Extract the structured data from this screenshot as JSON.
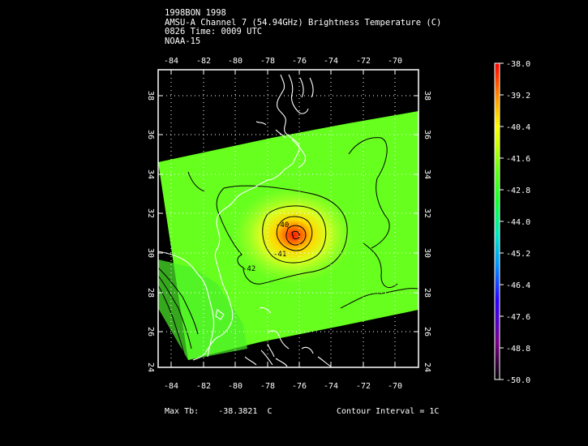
{
  "header": {
    "line1": "1998BON 1998",
    "line2": "AMSU-A Channel 7 (54.94GHz) Brightness Temperature (C)",
    "line3": "0826 Time: 0009 UTC",
    "line4": "NOAA-15"
  },
  "map": {
    "lon_ticks": [
      "-84",
      "-82",
      "-80",
      "-78",
      "-76",
      "-74",
      "-72",
      "-70"
    ],
    "lat_ticks": [
      "24",
      "26",
      "28",
      "30",
      "32",
      "34",
      "36",
      "38"
    ],
    "lon_range": [
      -85.3,
      -69.3
    ],
    "lat_range": [
      23.3,
      39.7
    ],
    "contour_labels": [
      "-40",
      "-41",
      "-42"
    ],
    "grid": "dotted",
    "colors": {
      "background": "#000000",
      "coast": "#ffffff",
      "contour": "#000000"
    }
  },
  "colorbar": {
    "labels": [
      "-38.0",
      "-39.2",
      "-40.4",
      "-41.6",
      "-42.8",
      "-44.0",
      "-45.2",
      "-46.4",
      "-47.6",
      "-48.8",
      "-50.0"
    ],
    "range": [
      -50.0,
      -38.0
    ]
  },
  "footer": {
    "max_label": "Max Tb:",
    "max_value": "-38.3821",
    "max_unit": "C",
    "contour_interval": "Contour Interval = 1C"
  }
}
